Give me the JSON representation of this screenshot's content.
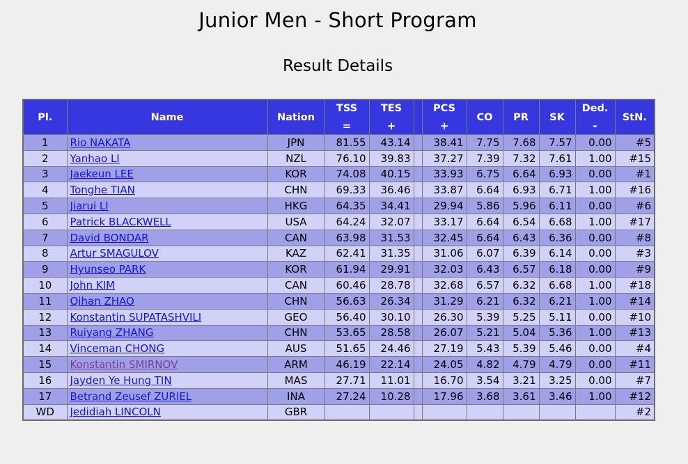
{
  "title": "Junior Men - Short Program",
  "subtitle": "Result Details",
  "headers": {
    "pl": "Pl.",
    "name": "Name",
    "nation": "Nation",
    "tss": "TSS",
    "tss_sub": "=",
    "tes": "TES",
    "tes_sub": "+",
    "pcs": "PCS",
    "pcs_sub": "+",
    "co": "CO",
    "pr": "PR",
    "sk": "SK",
    "ded": "Ded.",
    "ded_sub": "-",
    "stn": "StN."
  },
  "rows": [
    {
      "pl": "1",
      "name": "Rio NAKATA",
      "nation": "JPN",
      "tss": "81.55",
      "tes": "43.14",
      "pcs": "38.41",
      "co": "7.75",
      "pr": "7.68",
      "sk": "7.57",
      "ded": "0.00",
      "stn": "#5"
    },
    {
      "pl": "2",
      "name": "Yanhao LI",
      "nation": "NZL",
      "tss": "76.10",
      "tes": "39.83",
      "pcs": "37.27",
      "co": "7.39",
      "pr": "7.32",
      "sk": "7.61",
      "ded": "1.00",
      "stn": "#15"
    },
    {
      "pl": "3",
      "name": "Jaekeun LEE",
      "nation": "KOR",
      "tss": "74.08",
      "tes": "40.15",
      "pcs": "33.93",
      "co": "6.75",
      "pr": "6.64",
      "sk": "6.93",
      "ded": "0.00",
      "stn": "#1"
    },
    {
      "pl": "4",
      "name": "Tonghe TIAN",
      "nation": "CHN",
      "tss": "69.33",
      "tes": "36.46",
      "pcs": "33.87",
      "co": "6.64",
      "pr": "6.93",
      "sk": "6.71",
      "ded": "1.00",
      "stn": "#16"
    },
    {
      "pl": "5",
      "name": "Jiarui LI",
      "nation": "HKG",
      "tss": "64.35",
      "tes": "34.41",
      "pcs": "29.94",
      "co": "5.86",
      "pr": "5.96",
      "sk": "6.11",
      "ded": "0.00",
      "stn": "#6"
    },
    {
      "pl": "6",
      "name": "Patrick BLACKWELL",
      "nation": "USA",
      "tss": "64.24",
      "tes": "32.07",
      "pcs": "33.17",
      "co": "6.64",
      "pr": "6.54",
      "sk": "6.68",
      "ded": "1.00",
      "stn": "#17"
    },
    {
      "pl": "7",
      "name": "David BONDAR",
      "nation": "CAN",
      "tss": "63.98",
      "tes": "31.53",
      "pcs": "32.45",
      "co": "6.64",
      "pr": "6.43",
      "sk": "6.36",
      "ded": "0.00",
      "stn": "#8"
    },
    {
      "pl": "8",
      "name": "Artur SMAGULOV",
      "nation": "KAZ",
      "tss": "62.41",
      "tes": "31.35",
      "pcs": "31.06",
      "co": "6.07",
      "pr": "6.39",
      "sk": "6.14",
      "ded": "0.00",
      "stn": "#3"
    },
    {
      "pl": "9",
      "name": "Hyunseo PARK",
      "nation": "KOR",
      "tss": "61.94",
      "tes": "29.91",
      "pcs": "32.03",
      "co": "6.43",
      "pr": "6.57",
      "sk": "6.18",
      "ded": "0.00",
      "stn": "#9"
    },
    {
      "pl": "10",
      "name": "John KIM",
      "nation": "CAN",
      "tss": "60.46",
      "tes": "28.78",
      "pcs": "32.68",
      "co": "6.57",
      "pr": "6.32",
      "sk": "6.68",
      "ded": "1.00",
      "stn": "#18"
    },
    {
      "pl": "11",
      "name": "Qihan ZHAO",
      "nation": "CHN",
      "tss": "56.63",
      "tes": "26.34",
      "pcs": "31.29",
      "co": "6.21",
      "pr": "6.32",
      "sk": "6.21",
      "ded": "1.00",
      "stn": "#14"
    },
    {
      "pl": "12",
      "name": "Konstantin SUPATASHVILI",
      "nation": "GEO",
      "tss": "56.40",
      "tes": "30.10",
      "pcs": "26.30",
      "co": "5.39",
      "pr": "5.25",
      "sk": "5.11",
      "ded": "0.00",
      "stn": "#10"
    },
    {
      "pl": "13",
      "name": "Ruiyang ZHANG",
      "nation": "CHN",
      "tss": "53.65",
      "tes": "28.58",
      "pcs": "26.07",
      "co": "5.21",
      "pr": "5.04",
      "sk": "5.36",
      "ded": "1.00",
      "stn": "#13"
    },
    {
      "pl": "14",
      "name": "Vinceman CHONG",
      "nation": "AUS",
      "tss": "51.65",
      "tes": "24.46",
      "pcs": "27.19",
      "co": "5.43",
      "pr": "5.39",
      "sk": "5.46",
      "ded": "0.00",
      "stn": "#4"
    },
    {
      "pl": "15",
      "name": "Konstantin SMIRNOV",
      "nation": "ARM",
      "tss": "46.19",
      "tes": "22.14",
      "pcs": "24.05",
      "co": "4.82",
      "pr": "4.79",
      "sk": "4.79",
      "ded": "0.00",
      "stn": "#11",
      "visited": true
    },
    {
      "pl": "16",
      "name": "Jayden Ye Hung TIN",
      "nation": "MAS",
      "tss": "27.71",
      "tes": "11.01",
      "pcs": "16.70",
      "co": "3.54",
      "pr": "3.21",
      "sk": "3.25",
      "ded": "0.00",
      "stn": "#7"
    },
    {
      "pl": "17",
      "name": "Betrand Zeusef ZURIEL",
      "nation": "INA",
      "tss": "27.24",
      "tes": "10.28",
      "pcs": "17.96",
      "co": "3.68",
      "pr": "3.61",
      "sk": "3.46",
      "ded": "1.00",
      "stn": "#12"
    },
    {
      "pl": "WD",
      "name": "Jedidiah LINCOLN",
      "nation": "GBR",
      "tss": "",
      "tes": "",
      "pcs": "",
      "co": "",
      "pr": "",
      "sk": "",
      "ded": "",
      "stn": "#2"
    }
  ],
  "colors": {
    "header_bg": "#3737e0",
    "row_dark": "#a0a0e8",
    "row_light": "#d2d2f8",
    "link": "#1515d8",
    "link_visited": "#7a3a9a"
  }
}
